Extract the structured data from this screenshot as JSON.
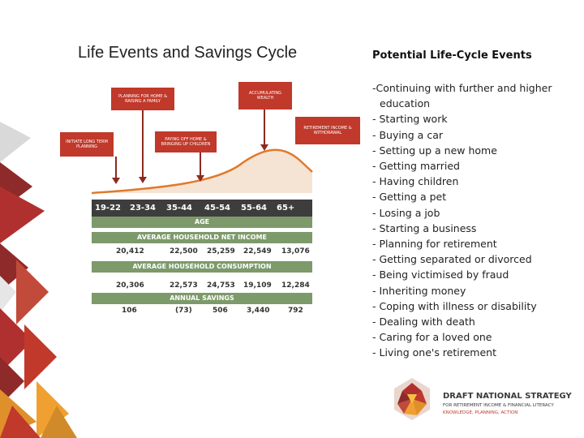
{
  "slide": {
    "title": "Life Events and Savings Cycle",
    "right_heading": "Potential Life-Cycle Events",
    "events": [
      "-Continuing with further and higher education",
      "- Starting work",
      "- Buying a car",
      "- Setting up a new home",
      "- Getting married",
      "- Having children",
      "- Getting a pet",
      "- Losing a job",
      "- Starting a business",
      "- Planning for retirement",
      "- Getting separated or divorced",
      "- Being victimised by fraud",
      "- Inheriting money",
      "- Coping with illness or disability",
      "- Dealing with death",
      "- Caring for a loved one",
      "- Living one's retirement"
    ]
  },
  "infographic": {
    "callouts": {
      "planning_home": "Planning for home & raising a family",
      "accumulating": "Accumulating wealth",
      "initiate": "Initiate long term planning",
      "paying_off": "Paying off home & bringing up children",
      "retirement": "Retirement income & withdrawal"
    },
    "ages": [
      "19-22",
      "23-34",
      "35-44",
      "45-54",
      "55-64",
      "65+"
    ],
    "age_label": "AGE",
    "net_income_label": "AVERAGE HOUSEHOLD NET INCOME",
    "net_income": [
      "20,412",
      "22,500",
      "25,259",
      "22,549",
      "13,076"
    ],
    "consumption_label": "AVERAGE HOUSEHOLD CONSUMPTION",
    "consumption": [
      "20,306",
      "22,573",
      "24,753",
      "19,109",
      "12,284"
    ],
    "savings_label": "ANNUAL SAVINGS",
    "savings": [
      "106",
      "(73)",
      "506",
      "3,440",
      "792"
    ]
  },
  "logo": {
    "line1": "DRAFT NATIONAL STRATEGY",
    "line2": "FOR RETIREMENT INCOME & FINANCIAL LITERACY",
    "line3": "KNOWLEDGE, PLANNING, ACTION"
  },
  "colors": {
    "accent": "#c0392b",
    "band": "#7d9a6a",
    "dark": "#3d3d3d"
  }
}
